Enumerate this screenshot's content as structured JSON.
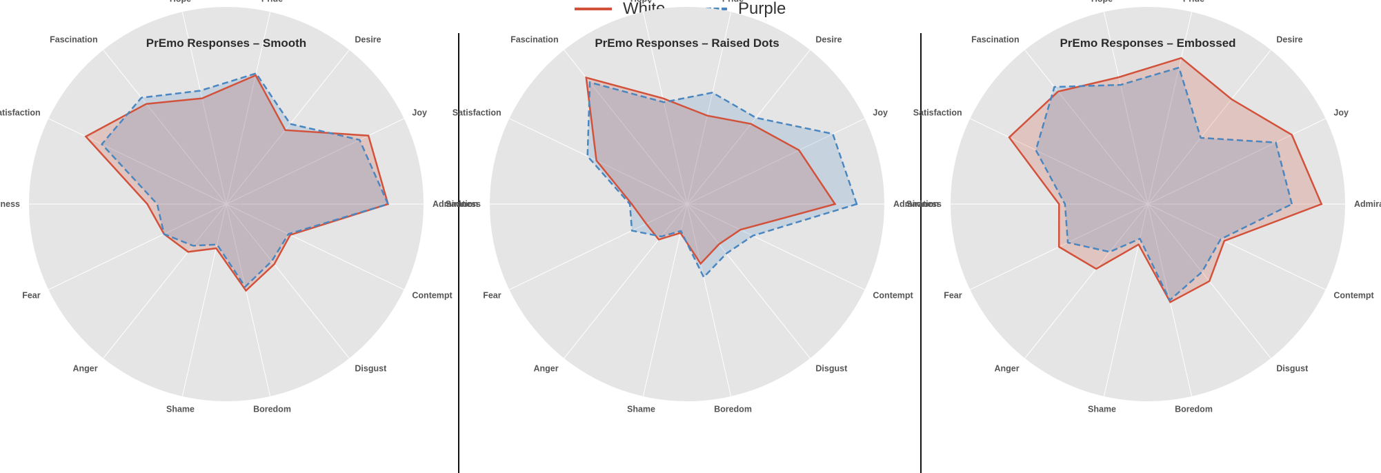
{
  "legend": {
    "items": [
      {
        "label": "White",
        "color": "#d2513a",
        "style": "solid"
      },
      {
        "label": "Purple",
        "color": "#4a86c0",
        "style": "dashed"
      }
    ]
  },
  "chart_data": [
    {
      "type": "radar",
      "title": "PrEmo Responses – Smooth",
      "categories": [
        "Admiration",
        "Joy",
        "Desire",
        "Pride",
        "Hope",
        "Fascination",
        "Satisfaction",
        "Sadness",
        "Fear",
        "Anger",
        "Shame",
        "Boredom",
        "Disgust",
        "Contempt"
      ],
      "rmax": 10,
      "grid": false,
      "series": [
        {
          "name": "White",
          "color": "#d2513a",
          "values": [
            8.2,
            8.0,
            4.8,
            6.7,
            5.5,
            6.5,
            7.9,
            4.0,
            3.5,
            3.1,
            2.3,
            4.5,
            3.9,
            3.6
          ]
        },
        {
          "name": "Purple",
          "color": "#4a86c0",
          "values": [
            8.2,
            7.5,
            5.2,
            6.8,
            5.9,
            6.9,
            7.0,
            3.5,
            3.5,
            2.7,
            2.1,
            4.3,
            3.7,
            3.5
          ]
        }
      ]
    },
    {
      "type": "radar",
      "title": "PrEmo Responses – Raised Dots",
      "categories": [
        "Admiration",
        "Joy",
        "Desire",
        "Pride",
        "Hope",
        "Fascination",
        "Satisfaction",
        "Sadness",
        "Fear",
        "Anger",
        "Shame",
        "Boredom",
        "Disgust",
        "Contempt"
      ],
      "rmax": 10,
      "grid": false,
      "series": [
        {
          "name": "White",
          "color": "#d2513a",
          "values": [
            7.5,
            6.3,
            5.2,
            4.6,
            5.5,
            8.2,
            5.1,
            2.8,
            2.3,
            2.3,
            1.5,
            3.1,
            2.6,
            3.0
          ]
        },
        {
          "name": "Purple",
          "color": "#4a86c0",
          "values": [
            8.6,
            8.2,
            5.6,
            5.8,
            5.3,
            7.9,
            5.6,
            2.9,
            3.1,
            2.1,
            1.4,
            3.8,
            3.2,
            3.7
          ]
        }
      ]
    },
    {
      "type": "radar",
      "title": "PrEmo Responses – Embossed",
      "categories": [
        "Admiration",
        "Joy",
        "Desire",
        "Pride",
        "Hope",
        "Fascination",
        "Satisfaction",
        "Sadness",
        "Fear",
        "Anger",
        "Shame",
        "Boredom",
        "Disgust",
        "Contempt"
      ],
      "rmax": 10,
      "grid": false,
      "series": [
        {
          "name": "White",
          "color": "#d2513a",
          "values": [
            8.8,
            8.1,
            6.8,
            7.6,
            6.6,
            7.3,
            7.8,
            4.5,
            5.0,
            4.2,
            2.1,
            5.1,
            5.0,
            4.3
          ]
        },
        {
          "name": "Purple",
          "color": "#4a86c0",
          "values": [
            7.3,
            7.2,
            4.3,
            7.1,
            6.2,
            7.6,
            6.3,
            4.2,
            4.5,
            3.1,
            1.8,
            5.0,
            4.4,
            4.1
          ]
        }
      ]
    }
  ]
}
